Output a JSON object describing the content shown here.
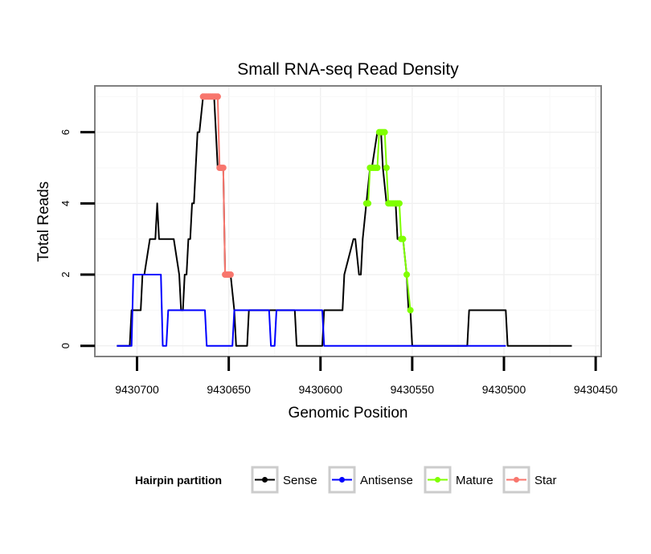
{
  "chart_data": {
    "type": "line",
    "title": "Small RNA-seq Read Density",
    "xlabel": "Genomic Position",
    "ylabel": "Total Reads",
    "xlim": [
      9430723,
      9430447
    ],
    "x_reversed": true,
    "ylim": [
      -0.3,
      7.3
    ],
    "x_ticks": [
      9430700,
      9430650,
      9430600,
      9430550,
      9430500,
      9430450
    ],
    "x_tick_labels": [
      "9430700",
      "9430650",
      "9430600",
      "9430550",
      "9430500",
      "9430450"
    ],
    "y_ticks": [
      0,
      2,
      4,
      6
    ],
    "y_tick_labels": [
      "0",
      "2",
      "4",
      "6"
    ],
    "grid": true,
    "legend": {
      "title": "Hairpin partition",
      "position": "bottom",
      "entries": [
        "Sense",
        "Antisense",
        "Mature",
        "Star"
      ]
    },
    "colors": {
      "Sense": "#000000",
      "Antisense": "#0000ff",
      "Mature": "#7fff00",
      "Star": "#f8766d"
    },
    "series": [
      {
        "name": "Sense",
        "x": [
          9430711,
          9430704,
          9430703,
          9430699,
          9430698,
          9430697,
          9430696,
          9430693,
          9430690,
          9430689,
          9430688,
          9430687,
          9430684,
          9430680,
          9430677,
          9430676,
          9430675,
          9430674,
          9430673,
          9430672,
          9430671,
          9430670,
          9430669,
          9430668,
          9430667,
          9430666,
          9430664,
          9430662,
          9430661,
          9430660,
          9430658,
          9430656,
          9430655,
          9430653,
          9430652,
          9430650,
          9430649,
          9430647,
          9430646,
          9430640,
          9430639,
          9430636,
          9430635,
          9430614,
          9430613,
          9430599,
          9430598,
          9430588,
          9430587,
          9430582,
          9430581,
          9430579,
          9430578,
          9430577,
          9430575,
          9430573,
          9430572,
          9430569,
          9430567,
          9430566,
          9430564,
          9430563,
          9430561,
          9430559,
          9430558,
          9430556,
          9430555,
          9430553,
          9430552,
          9430551,
          9430550,
          9430520,
          9430519,
          9430499,
          9430498,
          9430463
        ],
        "y": [
          0,
          0,
          1,
          1,
          1,
          2,
          2,
          3,
          3,
          4,
          3,
          3,
          3,
          3,
          2,
          1,
          1,
          2,
          2,
          3,
          3,
          4,
          4,
          5,
          6,
          6,
          7,
          7,
          7,
          7,
          7,
          5,
          5,
          5,
          2,
          2,
          2,
          1,
          0,
          0,
          1,
          1,
          1,
          1,
          0,
          0,
          1,
          1,
          2,
          3,
          3,
          2,
          2,
          3,
          4,
          5,
          5,
          6,
          6,
          5,
          4,
          4,
          4,
          4,
          3,
          3,
          3,
          2,
          1,
          1,
          0,
          0,
          1,
          1,
          0,
          0
        ]
      },
      {
        "name": "Antisense",
        "x": [
          9430711,
          9430703,
          9430702,
          9430687,
          9430686,
          9430684,
          9430683,
          9430663,
          9430662,
          9430648,
          9430647,
          9430628,
          9430627,
          9430625,
          9430624,
          9430599,
          9430598,
          9430499
        ],
        "y": [
          0,
          0,
          2,
          2,
          0,
          0,
          1,
          1,
          0,
          0,
          1,
          1,
          0,
          0,
          1,
          1,
          0,
          0
        ]
      },
      {
        "name": "Mature",
        "x": [
          9430575,
          9430574,
          9430573,
          9430572,
          9430571,
          9430570,
          9430569,
          9430568,
          9430567,
          9430566,
          9430565,
          9430564,
          9430563,
          9430562,
          9430561,
          9430560,
          9430559,
          9430558,
          9430557,
          9430556,
          9430555,
          9430553,
          9430551
        ],
        "y": [
          4,
          4,
          5,
          5,
          5,
          5,
          5,
          6,
          6,
          6,
          6,
          5,
          4,
          4,
          4,
          4,
          4,
          4,
          4,
          3,
          3,
          2,
          1
        ]
      },
      {
        "name": "Star",
        "x": [
          9430664,
          9430663,
          9430662,
          9430661,
          9430660,
          9430659,
          9430658,
          9430657,
          9430656,
          9430655,
          9430654,
          9430653,
          9430652,
          9430651,
          9430650,
          9430649
        ],
        "y": [
          7,
          7,
          7,
          7,
          7,
          7,
          7,
          7,
          7,
          5,
          5,
          5,
          2,
          2,
          2,
          2
        ]
      }
    ]
  }
}
